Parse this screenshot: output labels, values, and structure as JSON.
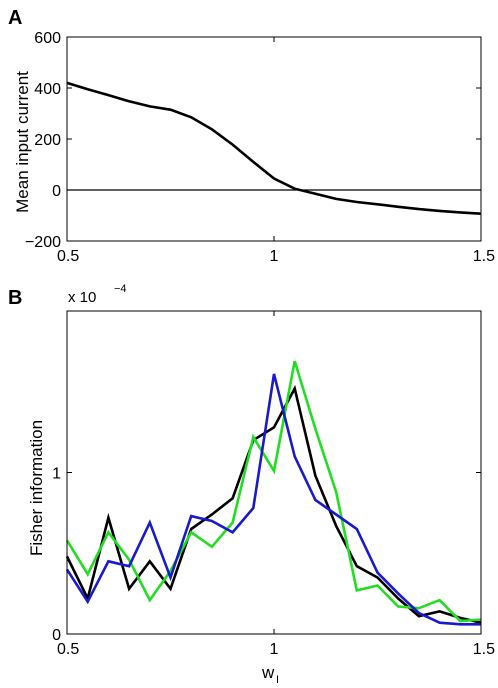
{
  "chart_data": [
    {
      "panel": "A",
      "type": "line",
      "xlabel": "",
      "ylabel": "Mean input current",
      "xlim": [
        0.5,
        1.5
      ],
      "ylim": [
        -200,
        600
      ],
      "xticks": [
        0.5,
        1,
        1.5
      ],
      "xtick_labels": [
        "0.5",
        "1",
        "1.5"
      ],
      "yticks": [
        -200,
        0,
        200,
        400,
        600
      ],
      "ytick_labels": [
        "−200",
        "0",
        "200",
        "400",
        "600"
      ],
      "reference_line": 0,
      "grid": false,
      "series": [
        {
          "color": "#000000",
          "x": [
            0.5,
            0.55,
            0.6,
            0.65,
            0.7,
            0.75,
            0.8,
            0.85,
            0.9,
            0.95,
            1.0,
            1.05,
            1.1,
            1.15,
            1.2,
            1.25,
            1.3,
            1.35,
            1.4,
            1.45,
            1.5
          ],
          "y": [
            420,
            395,
            372,
            348,
            328,
            315,
            285,
            238,
            178,
            110,
            45,
            5,
            -15,
            -35,
            -47,
            -56,
            -66,
            -75,
            -82,
            -88,
            -93
          ]
        }
      ]
    },
    {
      "panel": "B",
      "type": "line",
      "xlabel": "w",
      "xlabel_sub": "I",
      "ylabel": "Fisher information",
      "exponent_label": "x 10",
      "exponent_power": "−4",
      "xlim": [
        0.5,
        1.5
      ],
      "ylim": [
        0,
        2.0
      ],
      "xticks": [
        0.5,
        1,
        1.5
      ],
      "xtick_labels": [
        "0.5",
        "1",
        "1.5"
      ],
      "yticks": [
        0,
        1
      ],
      "ytick_labels": [
        "0",
        "1"
      ],
      "grid": false,
      "series": [
        {
          "color": "#000000",
          "x": [
            0.5,
            0.55,
            0.6,
            0.65,
            0.7,
            0.75,
            0.8,
            0.85,
            0.9,
            0.95,
            1.0,
            1.05,
            1.1,
            1.15,
            1.2,
            1.25,
            1.3,
            1.35,
            1.4,
            1.45,
            1.5
          ],
          "y": [
            0.48,
            0.22,
            0.72,
            0.28,
            0.45,
            0.28,
            0.65,
            0.74,
            0.84,
            1.2,
            1.28,
            1.52,
            0.98,
            0.67,
            0.42,
            0.35,
            0.22,
            0.11,
            0.14,
            0.1,
            0.07
          ]
        },
        {
          "color": "#22dd22",
          "x": [
            0.5,
            0.55,
            0.6,
            0.65,
            0.7,
            0.75,
            0.8,
            0.85,
            0.9,
            0.95,
            1.0,
            1.05,
            1.1,
            1.15,
            1.2,
            1.25,
            1.3,
            1.35,
            1.4,
            1.45,
            1.5
          ],
          "y": [
            0.58,
            0.37,
            0.63,
            0.46,
            0.21,
            0.39,
            0.63,
            0.54,
            0.69,
            1.22,
            1.01,
            1.69,
            1.27,
            0.88,
            0.27,
            0.3,
            0.17,
            0.16,
            0.21,
            0.08,
            0.09
          ]
        },
        {
          "color": "#1a1acc",
          "x": [
            0.5,
            0.55,
            0.6,
            0.65,
            0.7,
            0.75,
            0.8,
            0.85,
            0.9,
            0.95,
            1.0,
            1.05,
            1.1,
            1.15,
            1.2,
            1.25,
            1.3,
            1.35,
            1.4,
            1.45,
            1.5
          ],
          "y": [
            0.4,
            0.2,
            0.45,
            0.42,
            0.69,
            0.35,
            0.73,
            0.7,
            0.63,
            0.78,
            1.61,
            1.1,
            0.83,
            0.74,
            0.65,
            0.38,
            0.25,
            0.13,
            0.07,
            0.06,
            0.06
          ]
        }
      ]
    }
  ]
}
